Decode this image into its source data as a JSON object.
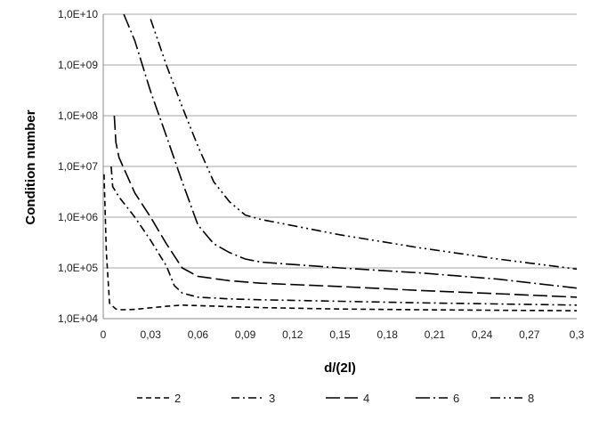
{
  "chart_data": {
    "type": "line",
    "title": "",
    "xlabel": "d/(2l)",
    "ylabel": "Condition number",
    "xlim": [
      0,
      0.3
    ],
    "ylim": [
      10000,
      10000000000
    ],
    "y_scale": "log",
    "grid": "horizontal",
    "legend_position": "bottom",
    "x_ticks": [
      0,
      0.03,
      0.06,
      0.09,
      0.12,
      0.15,
      0.18,
      0.21,
      0.24,
      0.27,
      0.3
    ],
    "x_tick_labels": [
      "0",
      "0,03",
      "0,06",
      "0,09",
      "0,12",
      "0,15",
      "0,18",
      "0,21",
      "0,24",
      "0,27",
      "0,3"
    ],
    "y_ticks": [
      10000,
      100000,
      1000000,
      10000000,
      100000000,
      1000000000,
      10000000000
    ],
    "y_tick_labels": [
      "1,0E+04",
      "1,0E+05",
      "1,0E+06",
      "1,0E+07",
      "1,0E+08",
      "1,0E+09",
      "1,0E+10"
    ],
    "series": [
      {
        "name": "2",
        "dash": "6,4",
        "points": [
          [
            0.0005,
            7000000
          ],
          [
            0.002,
            200000
          ],
          [
            0.004,
            20000
          ],
          [
            0.008,
            15500
          ],
          [
            0.012,
            15000
          ],
          [
            0.02,
            15200
          ],
          [
            0.04,
            17500
          ],
          [
            0.05,
            18500
          ],
          [
            0.06,
            18000
          ],
          [
            0.1,
            16500
          ],
          [
            0.15,
            15500
          ],
          [
            0.2,
            15000
          ],
          [
            0.25,
            14600
          ],
          [
            0.3,
            14300
          ]
        ]
      },
      {
        "name": "3",
        "dash": "9,4,2,4",
        "points": [
          [
            0.005,
            10000000
          ],
          [
            0.006,
            4000000
          ],
          [
            0.01,
            2500000
          ],
          [
            0.02,
            1000000
          ],
          [
            0.03,
            350000
          ],
          [
            0.04,
            110000
          ],
          [
            0.045,
            45000
          ],
          [
            0.05,
            32000
          ],
          [
            0.06,
            26500
          ],
          [
            0.08,
            24500
          ],
          [
            0.1,
            23500
          ],
          [
            0.15,
            22000
          ],
          [
            0.2,
            20500
          ],
          [
            0.25,
            19500
          ],
          [
            0.3,
            18500
          ]
        ]
      },
      {
        "name": "4",
        "dash": "16,5",
        "points": [
          [
            0.007,
            100000000
          ],
          [
            0.008,
            30000000
          ],
          [
            0.01,
            15000000
          ],
          [
            0.02,
            3000000
          ],
          [
            0.03,
            1000000
          ],
          [
            0.04,
            300000
          ],
          [
            0.05,
            100000
          ],
          [
            0.06,
            68000
          ],
          [
            0.08,
            56000
          ],
          [
            0.1,
            50000
          ],
          [
            0.15,
            43000
          ],
          [
            0.2,
            36000
          ],
          [
            0.25,
            31000
          ],
          [
            0.3,
            26500
          ]
        ]
      },
      {
        "name": "6",
        "dash": "16,4,2,4",
        "points": [
          [
            0.013,
            10000000000
          ],
          [
            0.02,
            3000000000
          ],
          [
            0.03,
            300000000
          ],
          [
            0.04,
            40000000
          ],
          [
            0.05,
            5000000
          ],
          [
            0.06,
            700000
          ],
          [
            0.07,
            300000
          ],
          [
            0.08,
            200000
          ],
          [
            0.09,
            150000
          ],
          [
            0.1,
            130000
          ],
          [
            0.15,
            100000
          ],
          [
            0.2,
            80000
          ],
          [
            0.25,
            60000
          ],
          [
            0.3,
            40000
          ]
        ]
      },
      {
        "name": "8",
        "dash": "11,4,2,4,2,4",
        "points": [
          [
            0.03,
            8000000000
          ],
          [
            0.04,
            1000000000
          ],
          [
            0.05,
            150000000
          ],
          [
            0.06,
            25000000
          ],
          [
            0.07,
            5000000
          ],
          [
            0.08,
            2000000
          ],
          [
            0.09,
            1100000
          ],
          [
            0.1,
            900000
          ],
          [
            0.15,
            450000
          ],
          [
            0.2,
            250000
          ],
          [
            0.25,
            150000
          ],
          [
            0.3,
            95000
          ]
        ]
      }
    ]
  }
}
